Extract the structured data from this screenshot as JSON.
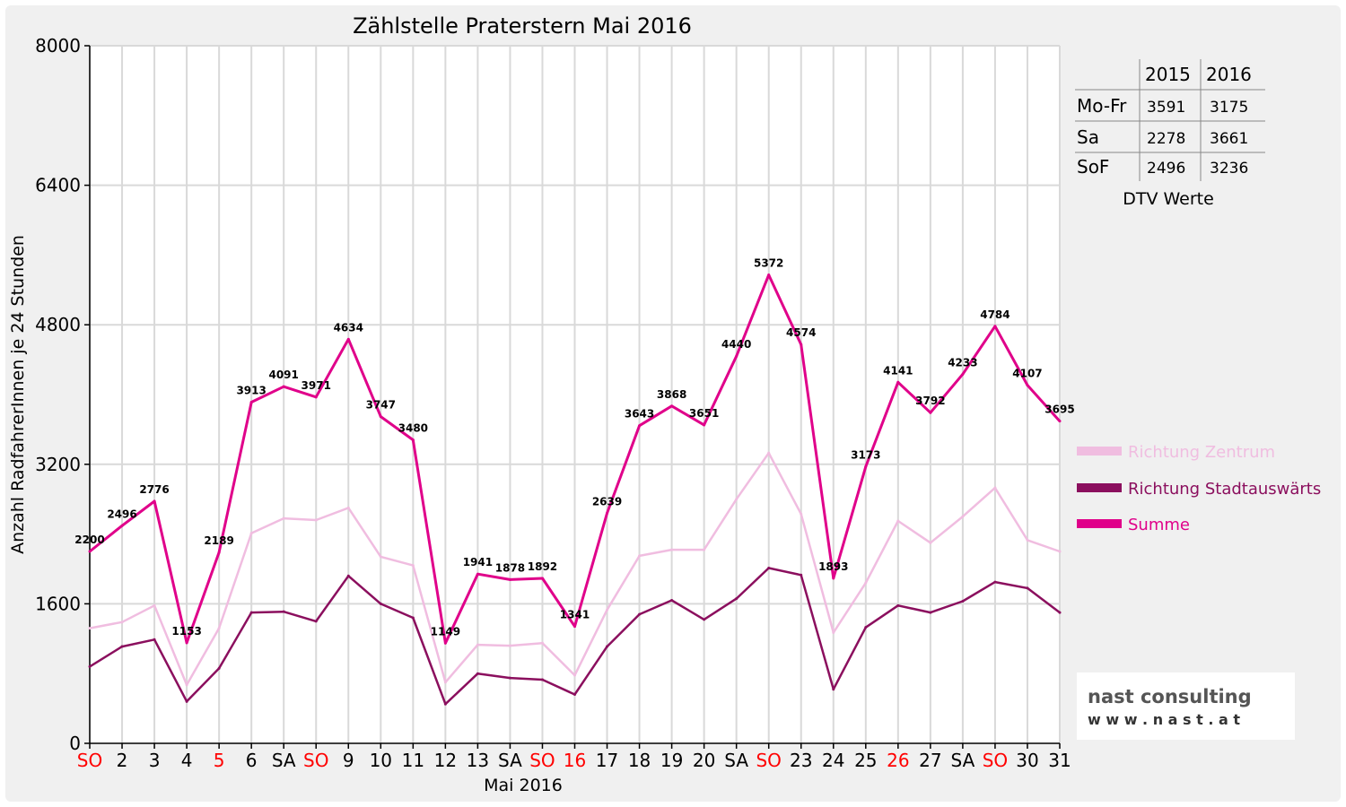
{
  "chart_data": {
    "type": "line",
    "title": "Zählstelle Praterstern Mai 2016",
    "xlabel": "Mai 2016",
    "ylabel": "Anzahl RadfahrerInnen je 24 Stunden",
    "ylim": [
      0,
      8000
    ],
    "yticks": [
      "0",
      "1600",
      "3200",
      "4800",
      "6400",
      "8000"
    ],
    "grid": true,
    "legend_position": "right",
    "categories": [
      "SO",
      "2",
      "3",
      "4",
      "5",
      "6",
      "SA",
      "SO",
      "9",
      "10",
      "11",
      "12",
      "13",
      "SA",
      "SO",
      "16",
      "17",
      "18",
      "19",
      "20",
      "SA",
      "SO",
      "23",
      "24",
      "25",
      "26",
      "27",
      "SA",
      "SO",
      "30",
      "31"
    ],
    "red_categories": [
      0,
      4,
      7,
      14,
      15,
      21,
      25,
      28
    ],
    "series": [
      {
        "name": "Richtung Zentrum",
        "color": "#f0bde0",
        "values": [
          1320,
          1390,
          1580,
          670,
          1320,
          2410,
          2580,
          2560,
          2700,
          2140,
          2040,
          700,
          1130,
          1120,
          1150,
          780,
          1530,
          2150,
          2220,
          2220,
          2800,
          3330,
          2630,
          1270,
          1840,
          2550,
          2300,
          2600,
          2930,
          2330,
          2200
        ]
      },
      {
        "name": "Richtung Stadtauswärts",
        "color": "#8b0f5e",
        "values": [
          880,
          1110,
          1190,
          480,
          860,
          1500,
          1510,
          1400,
          1920,
          1600,
          1440,
          450,
          800,
          750,
          730,
          560,
          1110,
          1480,
          1640,
          1420,
          1660,
          2010,
          1930,
          620,
          1330,
          1580,
          1500,
          1630,
          1850,
          1780,
          1500
        ]
      },
      {
        "name": "Summe",
        "color": "#e0008a",
        "values": [
          2200,
          2496,
          2776,
          1153,
          2189,
          3913,
          4091,
          3971,
          4634,
          3747,
          3480,
          1149,
          1941,
          1878,
          1892,
          1341,
          2639,
          3643,
          3868,
          3651,
          4440,
          5372,
          4574,
          1893,
          3173,
          4141,
          3792,
          4233,
          4784,
          4107,
          3695
        ]
      }
    ],
    "data_labels": [
      "2200",
      "2496",
      "2776",
      "1153",
      "2189",
      "3913",
      "4091",
      "3971",
      "4634",
      "3747",
      "3480",
      "1149",
      "1941",
      "1878",
      "1892",
      "1341",
      "2639",
      "3643",
      "3868",
      "3651",
      "4440",
      "5372",
      "4574",
      "1893",
      "3173",
      "4141",
      "3792",
      "4233",
      "4784",
      "4107",
      "3695"
    ]
  },
  "dtv_table": {
    "headers": [
      "",
      "2015",
      "2016"
    ],
    "rows": [
      {
        "label": "Mo-Fr",
        "y2015": "3591",
        "y2016": "3175"
      },
      {
        "label": "Sa",
        "y2015": "2278",
        "y2016": "3661"
      },
      {
        "label": "SoF",
        "y2015": "2496",
        "y2016": "3236"
      }
    ],
    "caption": "DTV Werte"
  },
  "logo": {
    "line1": "nast consulting",
    "line2": "w w w . n a s t . a t"
  }
}
